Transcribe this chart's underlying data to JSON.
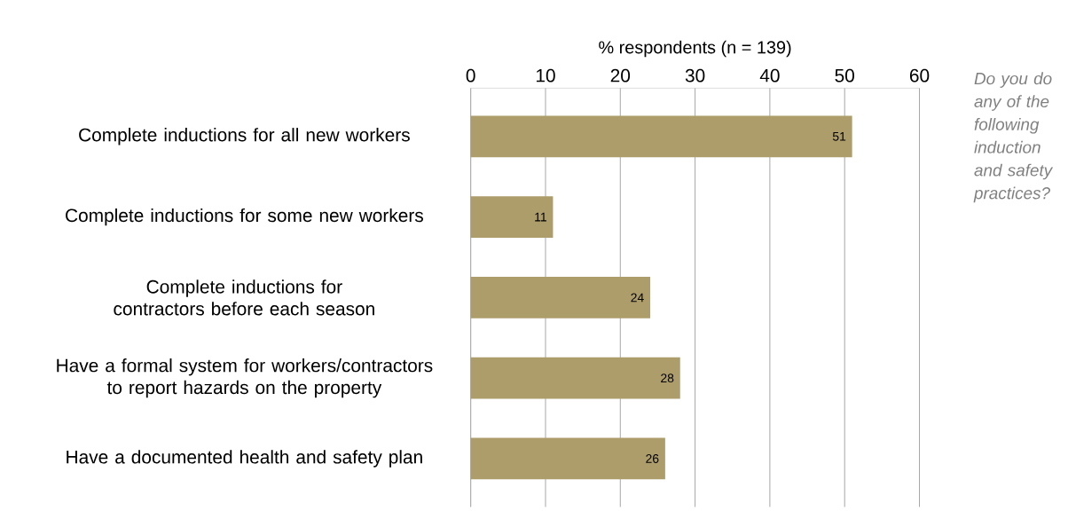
{
  "chart_data": {
    "type": "bar",
    "orientation": "horizontal",
    "categories": [
      "Complete inductions for all new workers",
      "Complete inductions for some new workers",
      "Complete inductions for contractors before each season",
      "Have a formal system for workers/contractors to report hazards on the property",
      "Have a documented health and safety plan"
    ],
    "values": [
      51,
      11,
      24,
      28,
      26
    ],
    "color": "#ad9d6b",
    "xlabel": "% respondents  (n = 139)",
    "xlim": [
      0,
      60
    ],
    "xticks": [
      0,
      10,
      20,
      30,
      40,
      50,
      60
    ],
    "grid": "x",
    "data_labels": true,
    "annotations": [
      "Do you do any of the following induction and safety practices?"
    ]
  }
}
